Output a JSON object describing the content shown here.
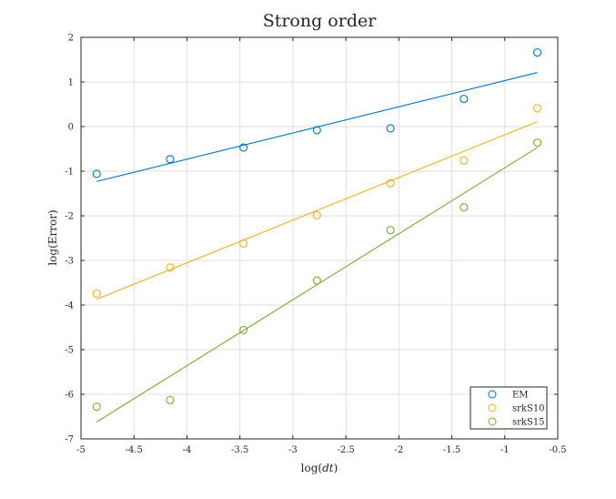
{
  "chart_data": {
    "type": "scatter",
    "title": "Strong order",
    "xlabel_prefix": "log(",
    "xlabel_var": "dt",
    "xlabel_suffix": ")",
    "ylabel": "log(Error)",
    "xlim": [
      -5,
      -0.5
    ],
    "ylim": [
      -7,
      2
    ],
    "xticks": [
      -5,
      -4.5,
      -4,
      -3.5,
      -3,
      -2.5,
      -2,
      -1.5,
      -1,
      -0.5
    ],
    "yticks": [
      -7,
      -6,
      -5,
      -4,
      -3,
      -2,
      -1,
      0,
      1,
      2
    ],
    "xtick_labels": [
      "-5",
      "-4.5",
      "-4",
      "-3.5",
      "-3",
      "-2.5",
      "-2",
      "-1.5",
      "-1",
      "-0.5"
    ],
    "ytick_labels": [
      "-7",
      "-6",
      "-5",
      "-4",
      "-3",
      "-2",
      "-1",
      "0",
      "1",
      "2"
    ],
    "grid": true,
    "legend_position": "bottom-right",
    "x": [
      -4.852,
      -4.159,
      -3.466,
      -2.773,
      -2.079,
      -1.386,
      -0.693
    ],
    "series": [
      {
        "name": "EM",
        "color": "#0072BD",
        "marker": "circle",
        "values": [
          -1.06,
          -0.73,
          -0.47,
          -0.08,
          -0.04,
          0.62,
          1.66
        ],
        "fit": [
          [
            -4.852,
            -1.23
          ],
          [
            -0.693,
            1.21
          ]
        ]
      },
      {
        "name": "srkS10",
        "color": "#EDB120",
        "marker": "circle",
        "values": [
          -3.74,
          -3.16,
          -2.62,
          -1.99,
          -1.27,
          -0.76,
          0.41
        ],
        "fit": [
          [
            -4.852,
            -3.87
          ],
          [
            -0.693,
            0.11
          ]
        ]
      },
      {
        "name": "srkS15",
        "color": "#77AC30",
        "marker": "circle",
        "values": [
          -6.28,
          -6.13,
          -4.56,
          -3.45,
          -2.32,
          -1.81,
          -0.36
        ],
        "fit": [
          [
            -4.852,
            -6.62
          ],
          [
            -0.693,
            -0.47
          ]
        ]
      }
    ]
  }
}
